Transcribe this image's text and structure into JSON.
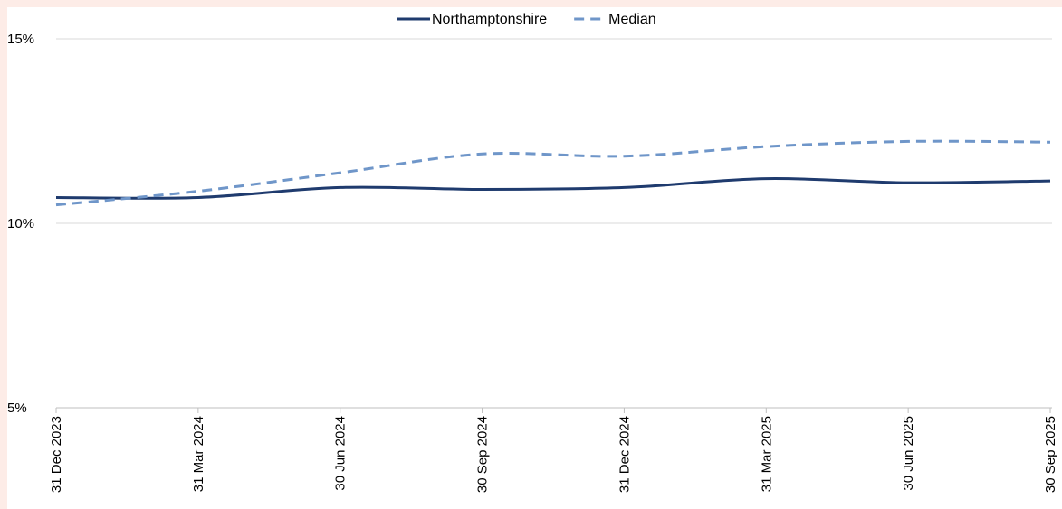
{
  "chart_data": {
    "type": "line",
    "title": "",
    "xlabel": "",
    "ylabel": "",
    "x": [
      "31 Dec 2023",
      "31 Mar 2024",
      "30 Jun 2024",
      "30 Sep 2024",
      "31 Dec 2024",
      "31 Mar 2025",
      "30 Jun 2025",
      "30 Sep 2025"
    ],
    "ylim": [
      5,
      15
    ],
    "y_ticks": [
      5,
      10,
      15
    ],
    "y_tick_labels": [
      "5%",
      "10%",
      "15%"
    ],
    "grid": true,
    "legend_position": "top-center",
    "series": [
      {
        "name": "Northamptonshire",
        "values": [
          10.7,
          10.7,
          10.97,
          10.92,
          10.97,
          11.21,
          11.1,
          11.15
        ],
        "color": "#1f3b6e",
        "style": "solid"
      },
      {
        "name": "Median",
        "values": [
          10.5,
          10.87,
          11.37,
          11.88,
          11.82,
          12.08,
          12.22,
          12.2
        ],
        "color": "#6f96c9",
        "style": "dashed"
      }
    ]
  }
}
